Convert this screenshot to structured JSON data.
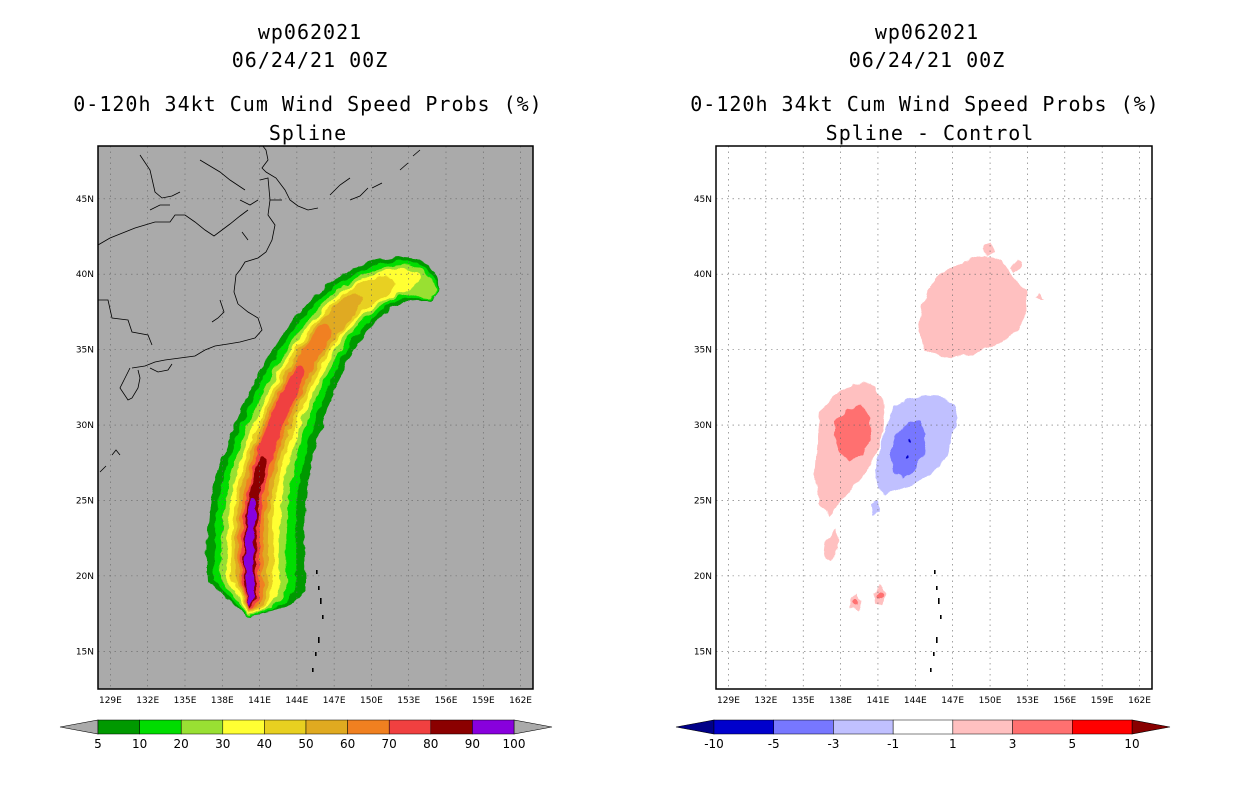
{
  "chart_data": [
    {
      "type": "heatmap",
      "storm_id": "wp062021",
      "datetime": "06/24/21 00Z",
      "title": "0-120h 34kt Cum Wind Speed Probs (%)",
      "subtitle": "Spline",
      "xlabel": "",
      "ylabel": "",
      "x_ticks": [
        "129E",
        "132E",
        "135E",
        "138E",
        "141E",
        "144E",
        "147E",
        "150E",
        "153E",
        "156E",
        "159E",
        "162E"
      ],
      "y_ticks": [
        "15N",
        "20N",
        "25N",
        "30N",
        "35N",
        "40N",
        "45N"
      ],
      "xlim": [
        128,
        163
      ],
      "ylim": [
        12.5,
        48.5
      ],
      "colorbar": {
        "levels": [
          "5",
          "10",
          "20",
          "30",
          "40",
          "50",
          "60",
          "70",
          "80",
          "90",
          "100"
        ],
        "colors": [
          "#009900",
          "#00dd00",
          "#99e033",
          "#ffff33",
          "#e8d020",
          "#e0aa20",
          "#f08020",
          "#f04040",
          "#8b0000",
          "#8800dd"
        ],
        "extend_colors": [
          "#aaaaaa",
          "#aaaaaa"
        ]
      }
    },
    {
      "type": "heatmap",
      "storm_id": "wp062021",
      "datetime": "06/24/21 00Z",
      "title": "0-120h 34kt Cum Wind Speed Probs (%)",
      "subtitle": "Spline - Control",
      "xlabel": "",
      "ylabel": "",
      "x_ticks": [
        "129E",
        "132E",
        "135E",
        "138E",
        "141E",
        "144E",
        "147E",
        "150E",
        "153E",
        "156E",
        "159E",
        "162E"
      ],
      "y_ticks": [
        "15N",
        "20N",
        "25N",
        "30N",
        "35N",
        "40N",
        "45N"
      ],
      "xlim": [
        128,
        163
      ],
      "ylim": [
        12.5,
        48.5
      ],
      "colorbar": {
        "levels": [
          "-10",
          "-5",
          "-3",
          "-1",
          "1",
          "3",
          "5",
          "10"
        ],
        "colors": [
          "#0000cc",
          "#7777ff",
          "#c0c0ff",
          "#ffffff",
          "#ffc0c0",
          "#ff7070",
          "#ff0000"
        ],
        "extend_colors": [
          "#000088",
          "#880000"
        ]
      }
    }
  ],
  "colors": {
    "land_outline": "#000000",
    "background_left": "#aaaaaa",
    "background_right": "#ffffff"
  }
}
